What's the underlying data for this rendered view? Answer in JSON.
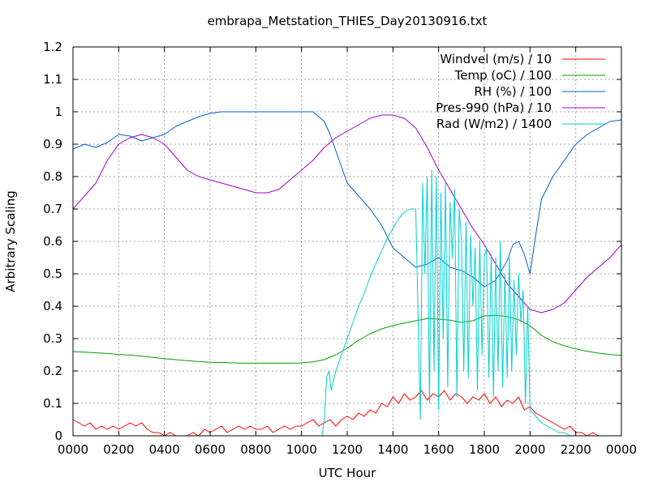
{
  "chart_data": {
    "type": "line",
    "title": "embrapa_Metstation_THIES_Day20130916.txt",
    "xlabel": "UTC Hour",
    "ylabel": "Arbitrary Scaling",
    "xlim": [
      0,
      24
    ],
    "ylim": [
      0,
      1.2
    ],
    "grid": true,
    "legend_position": "top-right",
    "x_ticks": [
      {
        "value": 0,
        "label": "0000"
      },
      {
        "value": 2,
        "label": "0200"
      },
      {
        "value": 4,
        "label": "0400"
      },
      {
        "value": 6,
        "label": "0600"
      },
      {
        "value": 8,
        "label": "0800"
      },
      {
        "value": 10,
        "label": "1000"
      },
      {
        "value": 12,
        "label": "1200"
      },
      {
        "value": 14,
        "label": "1400"
      },
      {
        "value": 16,
        "label": "1600"
      },
      {
        "value": 18,
        "label": "1800"
      },
      {
        "value": 20,
        "label": "2000"
      },
      {
        "value": 22,
        "label": "2200"
      },
      {
        "value": 24,
        "label": "0000"
      }
    ],
    "y_ticks": [
      {
        "value": 0,
        "label": "0"
      },
      {
        "value": 0.1,
        "label": "0.1"
      },
      {
        "value": 0.2,
        "label": "0.2"
      },
      {
        "value": 0.3,
        "label": "0.3"
      },
      {
        "value": 0.4,
        "label": "0.4"
      },
      {
        "value": 0.5,
        "label": "0.5"
      },
      {
        "value": 0.6,
        "label": "0.6"
      },
      {
        "value": 0.7,
        "label": "0.7"
      },
      {
        "value": 0.8,
        "label": "0.8"
      },
      {
        "value": 0.9,
        "label": "0.9"
      },
      {
        "value": 1.0,
        "label": "1"
      },
      {
        "value": 1.1,
        "label": "1.1"
      },
      {
        "value": 1.2,
        "label": "1.2"
      }
    ],
    "series": [
      {
        "name": "Windvel (m/s) / 10",
        "color": "#ff0000",
        "x": [
          0,
          0.25,
          0.5,
          0.75,
          1,
          1.25,
          1.5,
          1.75,
          2,
          2.25,
          2.5,
          2.75,
          3,
          3.25,
          3.5,
          3.75,
          4,
          4.25,
          4.5,
          4.75,
          5,
          5.25,
          5.5,
          5.75,
          6,
          6.25,
          6.5,
          6.75,
          7,
          7.25,
          7.5,
          7.75,
          8,
          8.25,
          8.5,
          8.75,
          9,
          9.25,
          9.5,
          9.75,
          10,
          10.25,
          10.5,
          10.75,
          11,
          11.25,
          11.5,
          11.75,
          12,
          12.25,
          12.5,
          12.75,
          13,
          13.25,
          13.5,
          13.75,
          14,
          14.25,
          14.5,
          14.75,
          15,
          15.25,
          15.5,
          15.75,
          16,
          16.25,
          16.5,
          16.75,
          17,
          17.25,
          17.5,
          17.75,
          18,
          18.25,
          18.5,
          18.75,
          19,
          19.25,
          19.5,
          19.75,
          20,
          20.25,
          20.5,
          20.75,
          21,
          21.25,
          21.5,
          21.75,
          22,
          22.25,
          22.5,
          22.75,
          23,
          23.25,
          23.5,
          23.75,
          24
        ],
        "y": [
          0.05,
          0.04,
          0.03,
          0.04,
          0.02,
          0.03,
          0.02,
          0.03,
          0.02,
          0.03,
          0.04,
          0.03,
          0.04,
          0.02,
          0.01,
          0.01,
          0.0,
          0.01,
          0.0,
          0.0,
          0.0,
          0.01,
          0.0,
          0.02,
          0.01,
          0.02,
          0.03,
          0.01,
          0.02,
          0.03,
          0.02,
          0.03,
          0.02,
          0.02,
          0.03,
          0.01,
          0.02,
          0.03,
          0.02,
          0.03,
          0.03,
          0.04,
          0.05,
          0.03,
          0.04,
          0.05,
          0.03,
          0.05,
          0.06,
          0.05,
          0.07,
          0.06,
          0.08,
          0.07,
          0.1,
          0.09,
          0.12,
          0.1,
          0.13,
          0.11,
          0.12,
          0.14,
          0.11,
          0.13,
          0.12,
          0.14,
          0.11,
          0.13,
          0.12,
          0.1,
          0.12,
          0.11,
          0.13,
          0.1,
          0.12,
          0.09,
          0.11,
          0.1,
          0.12,
          0.08,
          0.09,
          0.07,
          0.06,
          0.05,
          0.04,
          0.03,
          0.02,
          0.03,
          0.01,
          0.01,
          0.0,
          0.01,
          0.0,
          0.0,
          0.0,
          0.0,
          0.0
        ]
      },
      {
        "name": "Temp (oC) / 100",
        "color": "#00a000",
        "x": [
          0,
          0.5,
          1,
          1.5,
          2,
          2.5,
          3,
          3.5,
          4,
          4.5,
          5,
          5.5,
          6,
          6.5,
          7,
          7.5,
          8,
          8.5,
          9,
          9.5,
          10,
          10.5,
          11,
          11.5,
          12,
          12.5,
          13,
          13.5,
          14,
          14.5,
          15,
          15.5,
          16,
          16.5,
          17,
          17.5,
          18,
          18.5,
          19,
          19.5,
          20,
          20.5,
          21,
          21.5,
          22,
          22.5,
          23,
          23.5,
          24
        ],
        "y": [
          0.26,
          0.258,
          0.256,
          0.254,
          0.251,
          0.249,
          0.246,
          0.242,
          0.238,
          0.235,
          0.232,
          0.229,
          0.227,
          0.226,
          0.225,
          0.224,
          0.224,
          0.224,
          0.224,
          0.224,
          0.225,
          0.228,
          0.235,
          0.25,
          0.27,
          0.295,
          0.315,
          0.33,
          0.34,
          0.348,
          0.355,
          0.362,
          0.36,
          0.357,
          0.35,
          0.355,
          0.37,
          0.372,
          0.368,
          0.358,
          0.34,
          0.31,
          0.29,
          0.278,
          0.268,
          0.261,
          0.255,
          0.251,
          0.248
        ]
      },
      {
        "name": "RH (%) / 100",
        "color": "#0060d0",
        "x": [
          0,
          0.5,
          1,
          1.5,
          2,
          2.5,
          3,
          3.5,
          4,
          4.5,
          5,
          5.5,
          6,
          6.5,
          7,
          7.5,
          8,
          8.5,
          9,
          9.5,
          10,
          10.5,
          11,
          11.25,
          11.5,
          11.75,
          12,
          12.5,
          13,
          13.5,
          14,
          14.5,
          15,
          15.5,
          16,
          16.5,
          17,
          17.5,
          18,
          18.5,
          19,
          19.25,
          19.5,
          19.75,
          20,
          20.25,
          20.5,
          21,
          21.5,
          22,
          22.5,
          23,
          23.5,
          24
        ],
        "y": [
          0.885,
          0.9,
          0.89,
          0.905,
          0.93,
          0.925,
          0.91,
          0.92,
          0.93,
          0.955,
          0.97,
          0.985,
          0.995,
          1.0,
          1.0,
          1.0,
          1.0,
          1.0,
          1.0,
          1.0,
          1.0,
          1.0,
          0.97,
          0.93,
          0.88,
          0.83,
          0.78,
          0.74,
          0.7,
          0.65,
          0.58,
          0.55,
          0.52,
          0.53,
          0.55,
          0.52,
          0.51,
          0.49,
          0.46,
          0.48,
          0.54,
          0.59,
          0.6,
          0.56,
          0.5,
          0.62,
          0.73,
          0.8,
          0.85,
          0.9,
          0.93,
          0.95,
          0.97,
          0.975
        ]
      },
      {
        "name": "Pres-990 (hPa) / 10",
        "color": "#a000d0",
        "x": [
          0,
          0.5,
          1,
          1.5,
          2,
          2.5,
          3,
          3.5,
          4,
          4.5,
          5,
          5.5,
          6,
          6.5,
          7,
          7.5,
          8,
          8.5,
          9,
          9.5,
          10,
          10.5,
          11,
          11.5,
          12,
          12.5,
          13,
          13.5,
          14,
          14.5,
          15,
          15.5,
          16,
          16.5,
          17,
          17.5,
          18,
          18.5,
          19,
          19.5,
          20,
          20.5,
          21,
          21.5,
          22,
          22.5,
          23,
          23.5,
          24
        ],
        "y": [
          0.7,
          0.74,
          0.78,
          0.85,
          0.9,
          0.92,
          0.93,
          0.92,
          0.9,
          0.86,
          0.82,
          0.8,
          0.79,
          0.78,
          0.77,
          0.76,
          0.75,
          0.75,
          0.76,
          0.79,
          0.82,
          0.85,
          0.89,
          0.92,
          0.94,
          0.96,
          0.98,
          0.99,
          0.99,
          0.98,
          0.95,
          0.89,
          0.82,
          0.76,
          0.7,
          0.64,
          0.59,
          0.53,
          0.47,
          0.43,
          0.39,
          0.38,
          0.39,
          0.41,
          0.45,
          0.49,
          0.52,
          0.55,
          0.59
        ]
      },
      {
        "name": "Rad (W/m2) / 1400",
        "color": "#00d0d0",
        "x": [
          0,
          2,
          4,
          6,
          8,
          10,
          10.5,
          10.9,
          11,
          11.1,
          11.2,
          11.3,
          11.5,
          11.75,
          12,
          12.25,
          12.5,
          12.75,
          13,
          13.25,
          13.5,
          13.75,
          14,
          14.25,
          14.5,
          14.75,
          15,
          15.2,
          15.3,
          15.4,
          15.5,
          15.6,
          15.7,
          15.8,
          15.9,
          16.0,
          16.1,
          16.2,
          16.3,
          16.4,
          16.5,
          16.6,
          16.7,
          16.8,
          16.9,
          17.0,
          17.1,
          17.2,
          17.3,
          17.4,
          17.5,
          17.6,
          17.7,
          17.8,
          17.9,
          18.0,
          18.1,
          18.2,
          18.3,
          18.4,
          18.5,
          18.6,
          18.7,
          18.8,
          18.9,
          19.0,
          19.1,
          19.2,
          19.3,
          19.4,
          19.5,
          19.6,
          19.7,
          19.8,
          19.9,
          20.0,
          20.25,
          20.5,
          20.75,
          21,
          21.25,
          21.5,
          21.75,
          22,
          22.5,
          23,
          24
        ],
        "y": [
          0,
          0,
          0,
          0,
          0,
          0,
          0,
          0,
          0.05,
          0.18,
          0.2,
          0.14,
          0.2,
          0.25,
          0.3,
          0.35,
          0.4,
          0.44,
          0.49,
          0.53,
          0.57,
          0.61,
          0.64,
          0.67,
          0.69,
          0.7,
          0.7,
          0.05,
          0.78,
          0.5,
          0.8,
          0.1,
          0.82,
          0.2,
          0.8,
          0.08,
          0.75,
          0.3,
          0.78,
          0.15,
          0.72,
          0.55,
          0.76,
          0.12,
          0.7,
          0.6,
          0.2,
          0.66,
          0.18,
          0.62,
          0.4,
          0.58,
          0.14,
          0.6,
          0.25,
          0.55,
          0.58,
          0.18,
          0.56,
          0.12,
          0.55,
          0.2,
          0.6,
          0.15,
          0.5,
          0.18,
          0.55,
          0.2,
          0.48,
          0.25,
          0.5,
          0.35,
          0.45,
          0.1,
          0.4,
          0.08,
          0.06,
          0.04,
          0.03,
          0.02,
          0.01,
          0.01,
          0,
          0,
          0,
          0,
          0
        ]
      }
    ]
  }
}
